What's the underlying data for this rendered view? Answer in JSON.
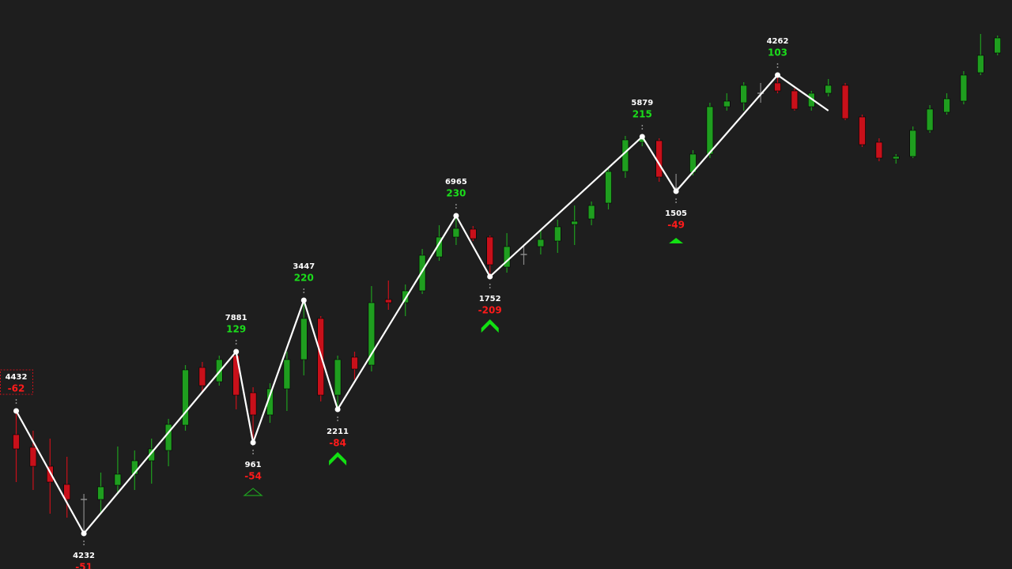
{
  "chart_data": {
    "type": "candlestick",
    "ylim": [
      0,
      720
    ],
    "colors": {
      "up": "#1f9e1f",
      "down": "#c8101a",
      "neutral": "#8a8a8a",
      "line": "#ffffff",
      "signal": "#12e012",
      "background": "#1e1e1e"
    },
    "candles": [
      [
        170,
        200,
        110,
        152
      ],
      [
        154,
        175,
        100,
        130
      ],
      [
        130,
        165,
        70,
        110
      ],
      [
        107,
        142,
        65,
        88
      ],
      [
        88,
        95,
        45,
        88
      ],
      [
        88,
        122,
        70,
        104
      ],
      [
        106,
        155,
        95,
        120
      ],
      [
        120,
        150,
        100,
        137
      ],
      [
        137,
        165,
        108,
        152
      ],
      [
        150,
        190,
        130,
        183
      ],
      [
        182,
        258,
        175,
        252
      ],
      [
        255,
        262,
        225,
        232
      ],
      [
        237,
        270,
        232,
        265
      ],
      [
        270,
        275,
        202,
        220
      ],
      [
        223,
        230,
        160,
        195
      ],
      [
        195,
        235,
        185,
        228
      ],
      [
        228,
        275,
        200,
        265
      ],
      [
        265,
        340,
        245,
        317
      ],
      [
        317,
        320,
        212,
        220
      ],
      [
        220,
        270,
        202,
        265
      ],
      [
        268,
        275,
        240,
        253
      ],
      [
        258,
        358,
        250,
        337
      ],
      [
        341,
        365,
        328,
        337
      ],
      [
        337,
        360,
        320,
        352
      ],
      [
        352,
        405,
        348,
        397
      ],
      [
        395,
        435,
        390,
        420
      ],
      [
        420,
        447,
        410,
        431
      ],
      [
        430,
        434,
        415,
        418
      ],
      [
        420,
        422,
        370,
        385
      ],
      [
        382,
        425,
        375,
        408
      ],
      [
        398,
        410,
        385,
        398
      ],
      [
        408,
        430,
        398,
        417
      ],
      [
        415,
        442,
        400,
        433
      ],
      [
        436,
        460,
        410,
        440
      ],
      [
        443,
        465,
        435,
        460
      ],
      [
        463,
        508,
        455,
        503
      ],
      [
        503,
        548,
        495,
        543
      ],
      [
        540,
        547,
        535,
        545
      ],
      [
        542,
        545,
        490,
        496
      ],
      [
        482,
        500,
        478,
        482
      ],
      [
        502,
        530,
        498,
        525
      ],
      [
        525,
        590,
        520,
        585
      ],
      [
        585,
        602,
        580,
        592
      ],
      [
        590,
        616,
        580,
        612
      ],
      [
        602,
        615,
        590,
        602
      ],
      [
        615,
        625,
        602,
        605
      ],
      [
        605,
        608,
        580,
        582
      ],
      [
        585,
        605,
        580,
        602
      ],
      [
        602,
        620,
        598,
        612
      ],
      [
        612,
        615,
        568,
        570
      ],
      [
        572,
        575,
        534,
        537
      ],
      [
        540,
        545,
        516,
        520
      ],
      [
        519,
        525,
        513,
        522
      ],
      [
        522,
        560,
        520,
        555
      ],
      [
        555,
        587,
        552,
        582
      ],
      [
        578,
        602,
        575,
        595
      ],
      [
        592,
        630,
        588,
        625
      ],
      [
        628,
        677,
        625,
        650
      ],
      [
        653,
        675,
        650,
        672
      ]
    ],
    "pivots": [
      {
        "index": 0,
        "price": 200,
        "kind": "high",
        "volume": 4432,
        "delta": -62,
        "boxed": true
      },
      {
        "index": 4,
        "price": 45,
        "kind": "low",
        "volume": 4232,
        "delta": -51
      },
      {
        "index": 13,
        "price": 275,
        "kind": "high",
        "volume": 7881,
        "delta": 129
      },
      {
        "index": 14,
        "price": 160,
        "kind": "low",
        "volume": 961,
        "delta": -54,
        "signal": "hollow-triangle"
      },
      {
        "index": 17,
        "price": 340,
        "kind": "high",
        "volume": 3447,
        "delta": 220
      },
      {
        "index": 19,
        "price": 202,
        "kind": "low",
        "volume": 2211,
        "delta": -84,
        "signal": "chevron"
      },
      {
        "index": 26,
        "price": 447,
        "kind": "high",
        "volume": 6965,
        "delta": 230
      },
      {
        "index": 28,
        "price": 370,
        "kind": "low",
        "volume": 1752,
        "delta": -209,
        "signal": "chevron"
      },
      {
        "index": 37,
        "price": 547,
        "kind": "high",
        "volume": 5879,
        "delta": 215
      },
      {
        "index": 39,
        "price": 478,
        "kind": "low",
        "volume": 1505,
        "delta": -49,
        "signal": "triangle"
      },
      {
        "index": 45,
        "price": 625,
        "kind": "high",
        "volume": 4262,
        "delta": 103
      }
    ],
    "line_end": {
      "index": 48,
      "price": 580
    }
  }
}
